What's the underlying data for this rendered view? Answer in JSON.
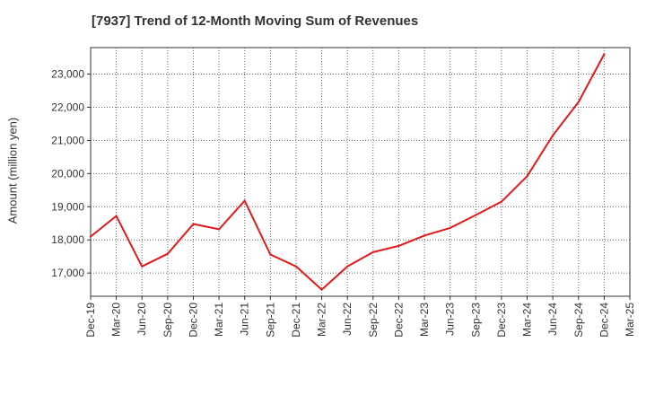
{
  "chart_data": {
    "type": "line",
    "title": "[7937]  Trend of 12-Month Moving Sum of Revenues",
    "xlabel": "",
    "ylabel": "Amount (million yen)",
    "grid": true,
    "legend": "none",
    "ylim": [
      16300,
      23800
    ],
    "y_ticks": [
      17000,
      18000,
      19000,
      20000,
      21000,
      22000,
      23000
    ],
    "y_tick_labels": [
      "17,000",
      "18,000",
      "19,000",
      "20,000",
      "21,000",
      "22,000",
      "23,000"
    ],
    "categories": [
      "Dec-19",
      "Mar-20",
      "Jun-20",
      "Sep-20",
      "Dec-20",
      "Mar-21",
      "Jun-21",
      "Sep-21",
      "Dec-21",
      "Mar-22",
      "Jun-22",
      "Sep-22",
      "Dec-22",
      "Mar-23",
      "Jun-23",
      "Sep-23",
      "Dec-23",
      "Mar-24",
      "Jun-24",
      "Sep-24",
      "Dec-24",
      "Mar-25"
    ],
    "series": [
      {
        "color": "#e31a1c",
        "values": [
          18100,
          18720,
          17200,
          17580,
          18480,
          18320,
          19180,
          17560,
          17200,
          16500,
          17200,
          17630,
          17820,
          18130,
          18360,
          18750,
          19150,
          19920,
          21150,
          22160,
          23600,
          null
        ]
      }
    ]
  }
}
